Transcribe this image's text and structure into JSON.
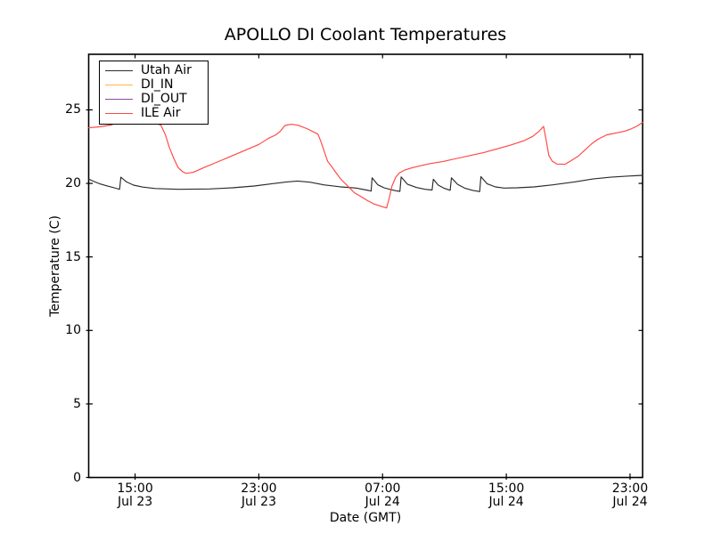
{
  "figure": {
    "title": "APOLLO DI Coolant Temperatures",
    "xlabel": "Date (GMT)",
    "ylabel": "Temperature (C)"
  },
  "chart_data": {
    "type": "line",
    "title": "APOLLO DI Coolant Temperatures",
    "xlabel": "Date (GMT)",
    "ylabel": "Temperature (C)",
    "x_unit": "hours after Jul 23 12:00 GMT",
    "xlim_hours": [
      0,
      35.81
    ],
    "ylim": [
      0,
      28.78
    ],
    "grid": false,
    "legend_position": "upper left",
    "y_ticks": [
      0,
      5,
      10,
      15,
      20,
      25
    ],
    "x_ticks": [
      {
        "hour": 3,
        "time": "15:00",
        "date": "Jul 23"
      },
      {
        "hour": 11,
        "time": "23:00",
        "date": "Jul 23"
      },
      {
        "hour": 19,
        "time": "07:00",
        "date": "Jul 24"
      },
      {
        "hour": 27,
        "time": "15:00",
        "date": "Jul 24"
      },
      {
        "hour": 35,
        "time": "23:00",
        "date": "Jul 24"
      }
    ],
    "series": [
      {
        "name": "Utah Air",
        "color": "#2b2b2b",
        "points": [
          [
            0,
            20.3
          ],
          [
            0.3,
            20.15
          ],
          [
            0.7,
            19.98
          ],
          [
            1.2,
            19.83
          ],
          [
            1.65,
            19.7
          ],
          [
            2.0,
            19.6
          ],
          [
            2.08,
            20.42
          ],
          [
            2.45,
            20.1
          ],
          [
            2.9,
            19.88
          ],
          [
            3.5,
            19.75
          ],
          [
            4.3,
            19.65
          ],
          [
            5.8,
            19.6
          ],
          [
            7.8,
            19.62
          ],
          [
            9.3,
            19.7
          ],
          [
            10.7,
            19.82
          ],
          [
            11.8,
            19.97
          ],
          [
            12.8,
            20.1
          ],
          [
            13.5,
            20.16
          ],
          [
            14.3,
            20.08
          ],
          [
            15.2,
            19.9
          ],
          [
            16.3,
            19.76
          ],
          [
            17.3,
            19.68
          ],
          [
            18.1,
            19.52
          ],
          [
            18.26,
            19.48
          ],
          [
            18.32,
            20.38
          ],
          [
            18.7,
            19.9
          ],
          [
            19.1,
            19.7
          ],
          [
            19.45,
            19.6
          ],
          [
            19.85,
            19.5
          ],
          [
            20.12,
            19.46
          ],
          [
            20.2,
            20.44
          ],
          [
            20.6,
            19.95
          ],
          [
            21.2,
            19.72
          ],
          [
            21.75,
            19.6
          ],
          [
            22.2,
            19.55
          ],
          [
            22.28,
            20.28
          ],
          [
            22.6,
            19.88
          ],
          [
            22.95,
            19.68
          ],
          [
            23.37,
            19.53
          ],
          [
            23.45,
            20.38
          ],
          [
            23.85,
            19.94
          ],
          [
            24.3,
            19.68
          ],
          [
            24.8,
            19.53
          ],
          [
            25.28,
            19.44
          ],
          [
            25.36,
            20.46
          ],
          [
            25.75,
            19.98
          ],
          [
            26.3,
            19.76
          ],
          [
            26.85,
            19.68
          ],
          [
            27.7,
            19.7
          ],
          [
            28.8,
            19.76
          ],
          [
            30.0,
            19.9
          ],
          [
            31.4,
            20.1
          ],
          [
            32.6,
            20.3
          ],
          [
            33.75,
            20.42
          ],
          [
            34.9,
            20.5
          ],
          [
            35.81,
            20.55
          ]
        ]
      },
      {
        "name": "DI_IN",
        "color": "#ffb347",
        "points": []
      },
      {
        "name": "DI_OUT",
        "color": "#8d4a9e",
        "points": []
      },
      {
        "name": "ILE Air",
        "color": "#ff4743",
        "points": [
          [
            0,
            23.78
          ],
          [
            0.7,
            23.85
          ],
          [
            1.44,
            23.97
          ],
          [
            2.3,
            24.3
          ],
          [
            3.2,
            24.5
          ],
          [
            4.0,
            24.3
          ],
          [
            4.67,
            23.95
          ],
          [
            4.96,
            23.3
          ],
          [
            5.2,
            22.5
          ],
          [
            5.5,
            21.7
          ],
          [
            5.77,
            21.1
          ],
          [
            6.06,
            20.8
          ],
          [
            6.28,
            20.68
          ],
          [
            6.75,
            20.75
          ],
          [
            7.4,
            21.05
          ],
          [
            8.2,
            21.4
          ],
          [
            9.1,
            21.8
          ],
          [
            10.0,
            22.2
          ],
          [
            11.0,
            22.65
          ],
          [
            11.6,
            23.05
          ],
          [
            12.1,
            23.3
          ],
          [
            12.35,
            23.5
          ],
          [
            12.69,
            23.94
          ],
          [
            13.1,
            24.02
          ],
          [
            13.55,
            23.95
          ],
          [
            14.15,
            23.7
          ],
          [
            14.82,
            23.35
          ],
          [
            14.99,
            22.9
          ],
          [
            15.16,
            22.4
          ],
          [
            15.45,
            21.5
          ],
          [
            15.74,
            21.1
          ],
          [
            16.03,
            20.67
          ],
          [
            16.32,
            20.27
          ],
          [
            16.61,
            19.96
          ],
          [
            16.9,
            19.66
          ],
          [
            17.18,
            19.36
          ],
          [
            17.6,
            19.1
          ],
          [
            18.0,
            18.85
          ],
          [
            18.45,
            18.6
          ],
          [
            18.9,
            18.45
          ],
          [
            19.26,
            18.33
          ],
          [
            19.43,
            19.0
          ],
          [
            19.6,
            19.8
          ],
          [
            19.84,
            20.4
          ],
          [
            20.07,
            20.7
          ],
          [
            20.41,
            20.9
          ],
          [
            20.87,
            21.05
          ],
          [
            21.45,
            21.2
          ],
          [
            22.08,
            21.35
          ],
          [
            22.95,
            21.5
          ],
          [
            23.81,
            21.7
          ],
          [
            24.68,
            21.9
          ],
          [
            25.54,
            22.1
          ],
          [
            26.41,
            22.35
          ],
          [
            27.27,
            22.6
          ],
          [
            28.14,
            22.9
          ],
          [
            28.71,
            23.2
          ],
          [
            29.12,
            23.55
          ],
          [
            29.41,
            23.88
          ],
          [
            29.58,
            22.9
          ],
          [
            29.75,
            21.9
          ],
          [
            29.98,
            21.5
          ],
          [
            30.27,
            21.32
          ],
          [
            30.79,
            21.3
          ],
          [
            31.19,
            21.55
          ],
          [
            31.65,
            21.85
          ],
          [
            32.11,
            22.3
          ],
          [
            32.52,
            22.7
          ],
          [
            32.92,
            23.0
          ],
          [
            33.5,
            23.3
          ],
          [
            34.19,
            23.45
          ],
          [
            34.65,
            23.55
          ],
          [
            35.06,
            23.7
          ],
          [
            35.46,
            23.9
          ],
          [
            35.81,
            24.15
          ]
        ]
      }
    ]
  }
}
